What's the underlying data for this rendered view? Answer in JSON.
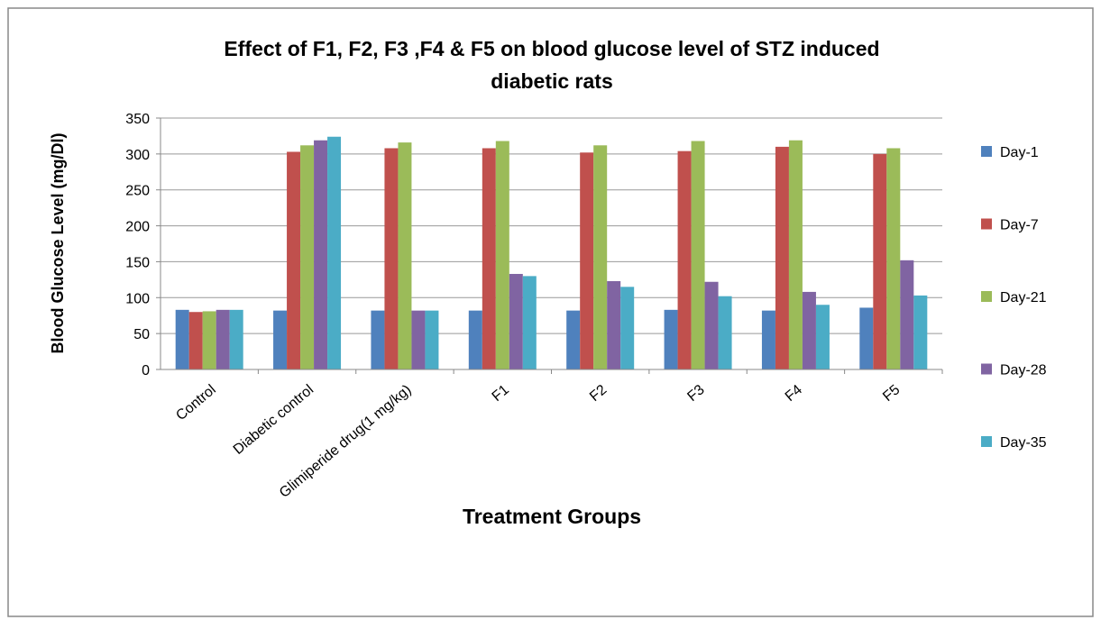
{
  "chart_data": {
    "type": "bar",
    "title": [
      "Effect of F1, F2, F3 ,F4 & F5 on blood glucose level of STZ induced",
      "diabetic rats"
    ],
    "xlabel": "Treatment Groups",
    "ylabel": "Blood Glucose Level (mg/Dl)",
    "categories": [
      "Control",
      "Diabetic control",
      "Glimiperide drug(1 mg/kg)",
      "F1",
      "F2",
      "F3",
      "F4",
      "F5"
    ],
    "series": [
      {
        "name": "Day-1",
        "color": "#4f81bd",
        "values": [
          83,
          82,
          82,
          82,
          82,
          83,
          82,
          86
        ]
      },
      {
        "name": "Day-7",
        "color": "#c0504d",
        "values": [
          80,
          303,
          308,
          308,
          302,
          304,
          310,
          300
        ]
      },
      {
        "name": "Day-21",
        "color": "#9bbb59",
        "values": [
          81,
          312,
          316,
          318,
          312,
          318,
          319,
          308
        ]
      },
      {
        "name": "Day-28",
        "color": "#8064a2",
        "values": [
          83,
          319,
          82,
          133,
          123,
          122,
          108,
          152
        ]
      },
      {
        "name": "Day-35",
        "color": "#4bacc6",
        "values": [
          83,
          324,
          82,
          130,
          115,
          102,
          90,
          103
        ]
      }
    ],
    "ylim": [
      0,
      350
    ],
    "yticks": [
      0,
      50,
      100,
      150,
      200,
      250,
      300,
      350
    ],
    "grid": true,
    "legend": "right"
  }
}
